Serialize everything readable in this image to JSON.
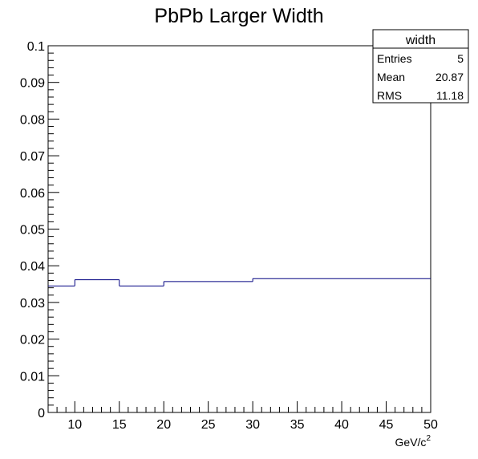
{
  "chart_data": {
    "type": "histogram",
    "title": "PbPb Larger Width",
    "xlabel": "GeV/c",
    "xlabel_superscript": "2",
    "ylabel": "",
    "xlim": [
      7,
      50
    ],
    "ylim": [
      0,
      0.1
    ],
    "bin_edges": [
      7,
      10,
      15,
      20,
      30,
      50
    ],
    "values": [
      0.0345,
      0.0362,
      0.0345,
      0.0357,
      0.0365
    ],
    "line_color": "#000080",
    "x_ticks": [
      "10",
      "15",
      "20",
      "25",
      "30",
      "35",
      "40",
      "45",
      "50"
    ],
    "x_tick_values": [
      10,
      15,
      20,
      25,
      30,
      35,
      40,
      45,
      50
    ],
    "y_ticks": [
      "0",
      "0.01",
      "0.02",
      "0.03",
      "0.04",
      "0.05",
      "0.06",
      "0.07",
      "0.08",
      "0.09",
      "0.1"
    ],
    "y_tick_values": [
      0,
      0.01,
      0.02,
      0.03,
      0.04,
      0.05,
      0.06,
      0.07,
      0.08,
      0.09,
      0.1
    ],
    "grid": false,
    "legend_placement": "top-right",
    "stats_box": {
      "name": "width",
      "rows": [
        {
          "label": "Entries",
          "value": "5"
        },
        {
          "label": "Mean",
          "value": "20.87"
        },
        {
          "label": "RMS",
          "value": "11.18"
        }
      ]
    }
  }
}
